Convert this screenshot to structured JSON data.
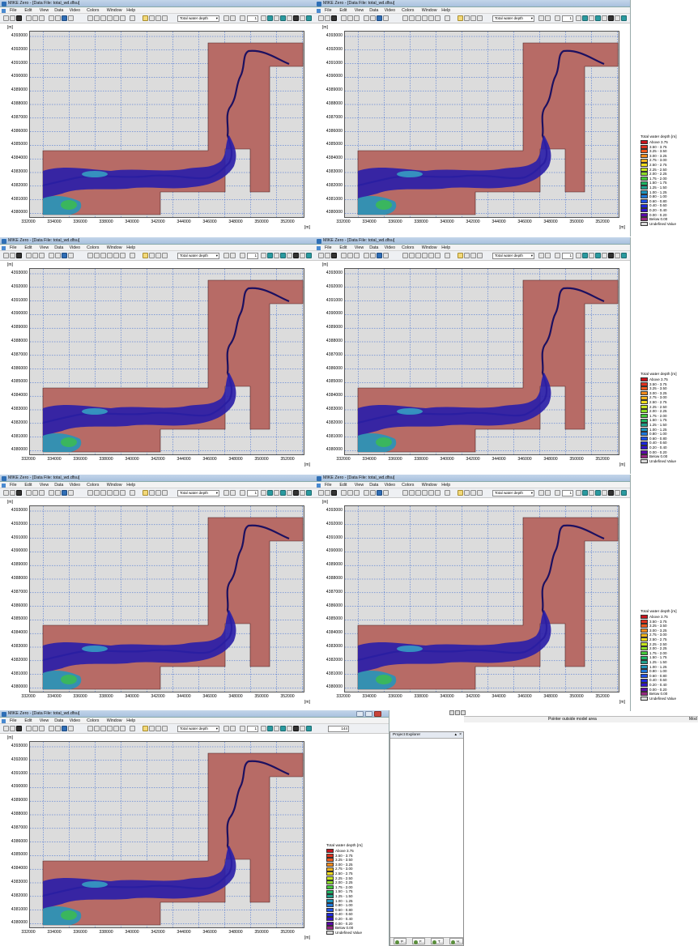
{
  "title": "MIKE Zero - [Data File: total_wd.dfsu]",
  "menu": [
    "File",
    "Edit",
    "View",
    "Data",
    "Video",
    "Colors",
    "Window",
    "Help"
  ],
  "toolbar": {
    "item_select": "Total water depth",
    "frame_value": "1"
  },
  "axis": {
    "unit_y": "[m]",
    "unit_x": "[m]",
    "y_ticks": [
      "4393000",
      "4392000",
      "4391000",
      "4390000",
      "4389000",
      "4388000",
      "4387000",
      "4386000",
      "4385000",
      "4384000",
      "4383000",
      "4382000",
      "4381000",
      "4380000"
    ],
    "x_ticks": [
      "332000",
      "334000",
      "336000",
      "338000",
      "340000",
      "342000",
      "344000",
      "346000",
      "348000",
      "350000",
      "352000"
    ]
  },
  "legend": {
    "title": "Total water depth [m]",
    "entries": [
      {
        "label": "Above 3.75",
        "color": "#c8141e"
      },
      {
        "label": "3.50 - 3.75",
        "color": "#e0321e"
      },
      {
        "label": "3.25 - 3.50",
        "color": "#f05a1e"
      },
      {
        "label": "3.00 - 3.25",
        "color": "#f58c1e"
      },
      {
        "label": "2.75 - 3.00",
        "color": "#f5b41e"
      },
      {
        "label": "2.50 - 2.75",
        "color": "#f0dc1e"
      },
      {
        "label": "2.25 - 2.50",
        "color": "#c8e61e"
      },
      {
        "label": "2.00 - 2.25",
        "color": "#8cdc28"
      },
      {
        "label": "1.75 - 2.00",
        "color": "#46c83c"
      },
      {
        "label": "1.50 - 1.75",
        "color": "#1eb464"
      },
      {
        "label": "1.25 - 1.50",
        "color": "#1ea08c"
      },
      {
        "label": "1.00 - 1.25",
        "color": "#1e96be"
      },
      {
        "label": "0.80 - 1.00",
        "color": "#1e78dc"
      },
      {
        "label": "0.60 - 0.80",
        "color": "#1e50e6"
      },
      {
        "label": "0.40 - 0.60",
        "color": "#1e28dc"
      },
      {
        "label": "0.20 - 0.40",
        "color": "#3214c8"
      },
      {
        "label": "0.00 - 0.20",
        "color": "#5a0aaa"
      },
      {
        "label": "Below 0.00",
        "color": "#962880"
      },
      {
        "label": "Undefined Value",
        "color": "#dcdcdc"
      }
    ]
  },
  "panels": [
    {
      "step": ""
    },
    {
      "step": "805"
    },
    {
      "step": ""
    },
    {
      "step": "815"
    },
    {
      "step": ""
    },
    {
      "step": "830"
    },
    {
      "step": "144"
    }
  ],
  "project_explorer": {
    "title": "Project Explorer",
    "tabs": [
      "P...",
      "F...",
      "T...",
      "H..."
    ]
  },
  "status": {
    "text": "Pointer outside model area",
    "mode": "Mod"
  },
  "colors": {
    "domain_fill": "#b76b66",
    "water_dark": "#2b1fa8",
    "background": "#dcdcdc"
  }
}
